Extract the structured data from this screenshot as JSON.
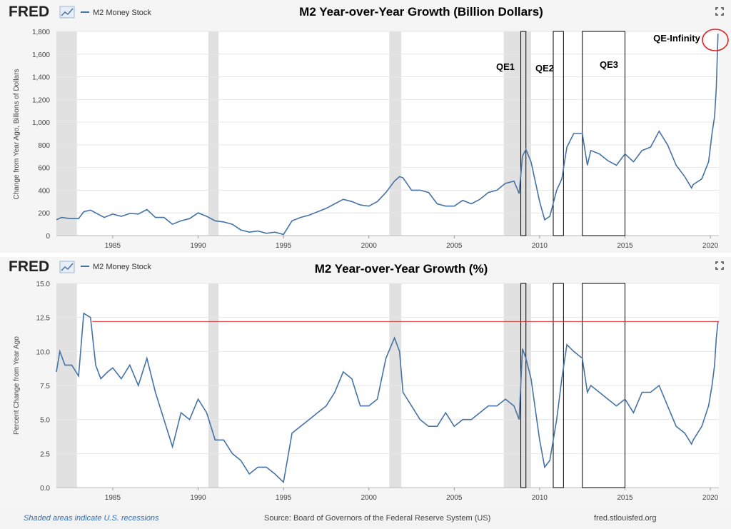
{
  "charts": [
    {
      "brand": "FRED",
      "legend_label": "M2 Money Stock",
      "title": "M2 Year-over-Year Growth (Billion Dollars)",
      "ylabel": "Change from Year Ago, Billions of Dollars"
    },
    {
      "brand": "FRED",
      "legend_label": "M2 Money Stock",
      "title": "M2 Year-over-Year Growth (%)",
      "ylabel": "Percent Change from Year Ago"
    }
  ],
  "annotations": {
    "qe1": "QE1",
    "qe2": "QE2",
    "qe3": "QE3",
    "qe_infinity": "QE-Infinity"
  },
  "footer": {
    "recession_note": "Shaded areas indicate U.S. recessions",
    "source": "Source: Board of Governors of the Federal Reserve System (US)",
    "site": "fred.stlouisfed.org"
  },
  "colors": {
    "line": "#4572a7",
    "recession": "#e1e1e1",
    "highlight_circle": "#e02020",
    "reference_line": "#e03030",
    "grid": "#e6e6e6"
  },
  "chart_data": [
    {
      "type": "line",
      "title": "M2 Year-over-Year Growth (Billion Dollars)",
      "ylabel": "Change from Year Ago, Billions of Dollars",
      "series_name": "M2 Money Stock",
      "xlim": [
        1981.7,
        2020.5
      ],
      "ylim": [
        0,
        1800
      ],
      "yticks": [
        0,
        200,
        400,
        600,
        800,
        1000,
        1200,
        1400,
        1600,
        1800
      ],
      "ytick_labels": [
        "0",
        "200",
        "400",
        "600",
        "800",
        "1,000",
        "1,200",
        "1,400",
        "1,600",
        "1,800"
      ],
      "xticks": [
        1985,
        1990,
        1995,
        2000,
        2005,
        2010,
        2015,
        2020
      ],
      "recessions": [
        [
          1981.6,
          1982.9
        ],
        [
          1990.6,
          1991.2
        ],
        [
          2001.2,
          2001.9
        ],
        [
          2007.9,
          2009.5
        ]
      ],
      "qe_boxes": [
        {
          "label": "QE1",
          "start": 2008.9,
          "end": 2009.2
        },
        {
          "label": "QE2",
          "start": 2010.8,
          "end": 2011.4
        },
        {
          "label": "QE3",
          "start": 2012.5,
          "end": 2015.0
        }
      ],
      "x": [
        1981.7,
        1982.0,
        1982.5,
        1983.0,
        1983.3,
        1983.7,
        1984.0,
        1984.5,
        1985.0,
        1985.5,
        1986.0,
        1986.5,
        1987.0,
        1987.5,
        1988.0,
        1988.5,
        1989.0,
        1989.5,
        1990.0,
        1990.5,
        1991.0,
        1991.5,
        1992.0,
        1992.5,
        1993.0,
        1993.5,
        1994.0,
        1994.5,
        1995.0,
        1995.5,
        1996.0,
        1996.5,
        1997.0,
        1997.5,
        1998.0,
        1998.5,
        1999.0,
        1999.5,
        2000.0,
        2000.5,
        2001.0,
        2001.5,
        2001.8,
        2002.0,
        2002.5,
        2003.0,
        2003.5,
        2004.0,
        2004.5,
        2005.0,
        2005.5,
        2006.0,
        2006.5,
        2007.0,
        2007.5,
        2008.0,
        2008.5,
        2008.8,
        2009.0,
        2009.2,
        2009.5,
        2010.0,
        2010.3,
        2010.6,
        2011.0,
        2011.3,
        2011.6,
        2012.0,
        2012.5,
        2012.8,
        2013.0,
        2013.5,
        2014.0,
        2014.5,
        2015.0,
        2015.5,
        2016.0,
        2016.5,
        2017.0,
        2017.5,
        2018.0,
        2018.5,
        2018.9,
        2019.0,
        2019.5,
        2019.9,
        2020.1,
        2020.25,
        2020.35,
        2020.45
      ],
      "y": [
        140,
        160,
        150,
        150,
        210,
        225,
        200,
        160,
        190,
        170,
        195,
        190,
        230,
        160,
        160,
        100,
        130,
        150,
        200,
        170,
        130,
        120,
        100,
        50,
        30,
        40,
        20,
        30,
        10,
        130,
        160,
        180,
        210,
        240,
        280,
        320,
        300,
        270,
        260,
        300,
        380,
        480,
        520,
        510,
        400,
        400,
        380,
        280,
        260,
        260,
        310,
        280,
        320,
        380,
        400,
        460,
        480,
        370,
        700,
        760,
        650,
        300,
        140,
        170,
        400,
        500,
        780,
        900,
        900,
        620,
        750,
        720,
        660,
        620,
        720,
        650,
        750,
        780,
        920,
        800,
        620,
        520,
        420,
        450,
        500,
        650,
        900,
        1050,
        1300,
        1780
      ]
    },
    {
      "type": "line",
      "title": "M2 Year-over-Year Growth (%)",
      "ylabel": "Percent Change from Year Ago",
      "series_name": "M2 Money Stock",
      "xlim": [
        1981.7,
        2020.5
      ],
      "ylim": [
        0,
        15
      ],
      "yticks": [
        0,
        2.5,
        5,
        7.5,
        10,
        12.5,
        15
      ],
      "ytick_labels": [
        "0.0",
        "2.5",
        "5.0",
        "7.5",
        "10.0",
        "12.5",
        "15.0"
      ],
      "xticks": [
        1985,
        1990,
        1995,
        2000,
        2005,
        2010,
        2015,
        2020
      ],
      "reference_line_y": 12.2,
      "recessions": [
        [
          1981.6,
          1982.9
        ],
        [
          1990.6,
          1991.2
        ],
        [
          2001.2,
          2001.9
        ],
        [
          2007.9,
          2009.5
        ]
      ],
      "qe_boxes": [
        {
          "label": "QE1",
          "start": 2008.9,
          "end": 2009.2
        },
        {
          "label": "QE2",
          "start": 2010.8,
          "end": 2011.4
        },
        {
          "label": "QE3",
          "start": 2012.5,
          "end": 2015.0
        }
      ],
      "x": [
        1981.7,
        1981.9,
        1982.2,
        1982.6,
        1983.0,
        1983.3,
        1983.7,
        1984.0,
        1984.3,
        1984.7,
        1985.0,
        1985.5,
        1986.0,
        1986.5,
        1987.0,
        1987.5,
        1988.0,
        1988.5,
        1989.0,
        1989.5,
        1990.0,
        1990.5,
        1991.0,
        1991.5,
        1992.0,
        1992.5,
        1993.0,
        1993.5,
        1994.0,
        1994.5,
        1995.0,
        1995.5,
        1996.0,
        1996.5,
        1997.0,
        1997.5,
        1998.0,
        1998.5,
        1999.0,
        1999.5,
        2000.0,
        2000.5,
        2001.0,
        2001.5,
        2001.8,
        2002.0,
        2002.5,
        2003.0,
        2003.5,
        2004.0,
        2004.5,
        2005.0,
        2005.5,
        2006.0,
        2006.5,
        2007.0,
        2007.5,
        2008.0,
        2008.5,
        2008.8,
        2009.0,
        2009.2,
        2009.5,
        2010.0,
        2010.3,
        2010.6,
        2011.0,
        2011.3,
        2011.6,
        2012.0,
        2012.5,
        2012.8,
        2013.0,
        2013.5,
        2014.0,
        2014.5,
        2015.0,
        2015.5,
        2016.0,
        2016.5,
        2017.0,
        2017.5,
        2018.0,
        2018.5,
        2018.9,
        2019.0,
        2019.5,
        2019.9,
        2020.1,
        2020.25,
        2020.35,
        2020.45
      ],
      "y": [
        8.5,
        10.0,
        9.0,
        9.0,
        8.2,
        12.8,
        12.5,
        9.0,
        8.0,
        8.5,
        8.8,
        8.0,
        9.0,
        7.5,
        9.5,
        7.0,
        5.0,
        3.0,
        5.5,
        5.0,
        6.5,
        5.5,
        3.5,
        3.5,
        2.5,
        2.0,
        1.0,
        1.5,
        1.5,
        1.0,
        0.4,
        4.0,
        4.5,
        5.0,
        5.5,
        6.0,
        7.0,
        8.5,
        8.0,
        6.0,
        6.0,
        6.5,
        9.5,
        11.0,
        10.0,
        7.0,
        6.0,
        5.0,
        4.5,
        4.5,
        5.5,
        4.5,
        5.0,
        5.0,
        5.5,
        6.0,
        6.0,
        6.5,
        6.0,
        5.0,
        10.2,
        9.5,
        8.0,
        3.5,
        1.5,
        2.0,
        5.0,
        8.0,
        10.5,
        10.0,
        9.5,
        7.0,
        7.5,
        7.0,
        6.5,
        6.0,
        6.5,
        5.5,
        7.0,
        7.0,
        7.5,
        6.0,
        4.5,
        4.0,
        3.2,
        3.5,
        4.5,
        6.0,
        7.5,
        9.0,
        11.0,
        12.2
      ]
    }
  ]
}
